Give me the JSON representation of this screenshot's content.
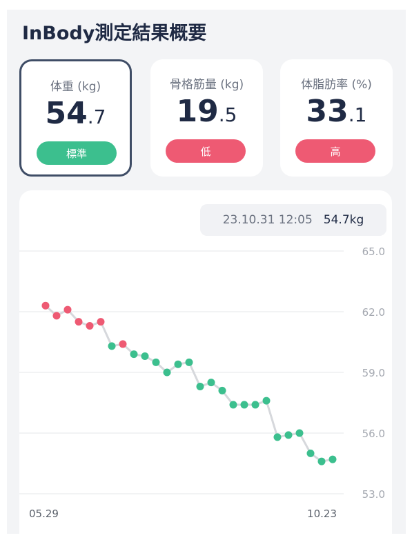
{
  "header": {
    "title": "InBody測定結果概要"
  },
  "cards": [
    {
      "label": "体重 (kg)",
      "int": "54",
      "dec": ".7",
      "badge": "標準",
      "badge_color": "#3cbf8e",
      "selected": true
    },
    {
      "label": "骨格筋量 (kg)",
      "int": "19",
      "dec": ".5",
      "badge": "低",
      "badge_color": "#ee5a73",
      "selected": false
    },
    {
      "label": "体脂肪率 (%)",
      "int": "33",
      "dec": ".1",
      "badge": "高",
      "badge_color": "#ee5a73",
      "selected": false
    }
  ],
  "tooltip": {
    "date": "23.10.31 12:05",
    "value": "54.7kg"
  },
  "colors": {
    "green": "#3cbf8e",
    "red": "#ee5a73",
    "line": "#d6d8dc",
    "grid": "#e6e7ea"
  },
  "chart_data": {
    "type": "line",
    "x_start_label": "05.29",
    "x_end_label": "10.23",
    "ylim": [
      53.0,
      65.0
    ],
    "yticks": [
      "65.0",
      "62.0",
      "59.0",
      "56.0",
      "53.0"
    ],
    "values": [
      62.3,
      61.8,
      62.1,
      61.5,
      61.3,
      61.5,
      60.3,
      60.4,
      59.9,
      59.8,
      59.5,
      59.0,
      59.4,
      59.5,
      58.3,
      58.5,
      58.1,
      57.4,
      57.4,
      57.4,
      57.6,
      55.8,
      55.9,
      56.0,
      55.0,
      54.6,
      54.7
    ],
    "status": [
      "red",
      "red",
      "red",
      "red",
      "red",
      "red",
      "green",
      "red",
      "green",
      "green",
      "green",
      "green",
      "green",
      "green",
      "green",
      "green",
      "green",
      "green",
      "green",
      "green",
      "green",
      "green",
      "green",
      "green",
      "green",
      "green",
      "green"
    ]
  }
}
